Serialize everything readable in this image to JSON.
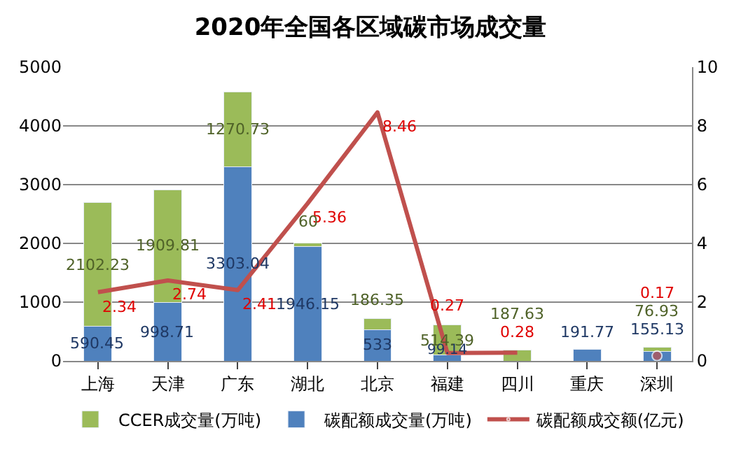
{
  "chart_data": {
    "type": "bar",
    "title": "2020年全国各区域碳市场成交量",
    "categories": [
      "上海",
      "天津",
      "广东",
      "湖北",
      "北京",
      "福建",
      "四川",
      "重庆",
      "深圳"
    ],
    "stacked": true,
    "data_labels": true,
    "series": [
      {
        "name": "碳配额成交量(万吨)",
        "color": "#4f81bd",
        "values": [
          590.45,
          998.71,
          3303.04,
          1946.15,
          533,
          99.14,
          null,
          191.77,
          155.13
        ]
      },
      {
        "name": "CCER成交量(万吨)",
        "color": "#9bbb59",
        "values": [
          2102.23,
          1909.81,
          1270.73,
          60,
          186.35,
          514.39,
          187.63,
          null,
          76.93
        ]
      },
      {
        "name": "碳配额成交额(亿元)",
        "type": "line",
        "axis": "y2",
        "color": "#c0504d",
        "values": [
          2.34,
          2.74,
          2.41,
          5.36,
          8.46,
          0.27,
          0.28,
          null,
          0.17
        ]
      }
    ],
    "ylim": [
      0,
      5000
    ],
    "yticks": [
      0,
      1000,
      2000,
      3000,
      4000,
      5000
    ],
    "y2lim": [
      0,
      10
    ],
    "y2ticks": [
      0,
      2,
      4,
      6,
      8,
      10
    ],
    "grid": "y",
    "legend": "bottom",
    "line_style": "solid",
    "marker": "none"
  }
}
